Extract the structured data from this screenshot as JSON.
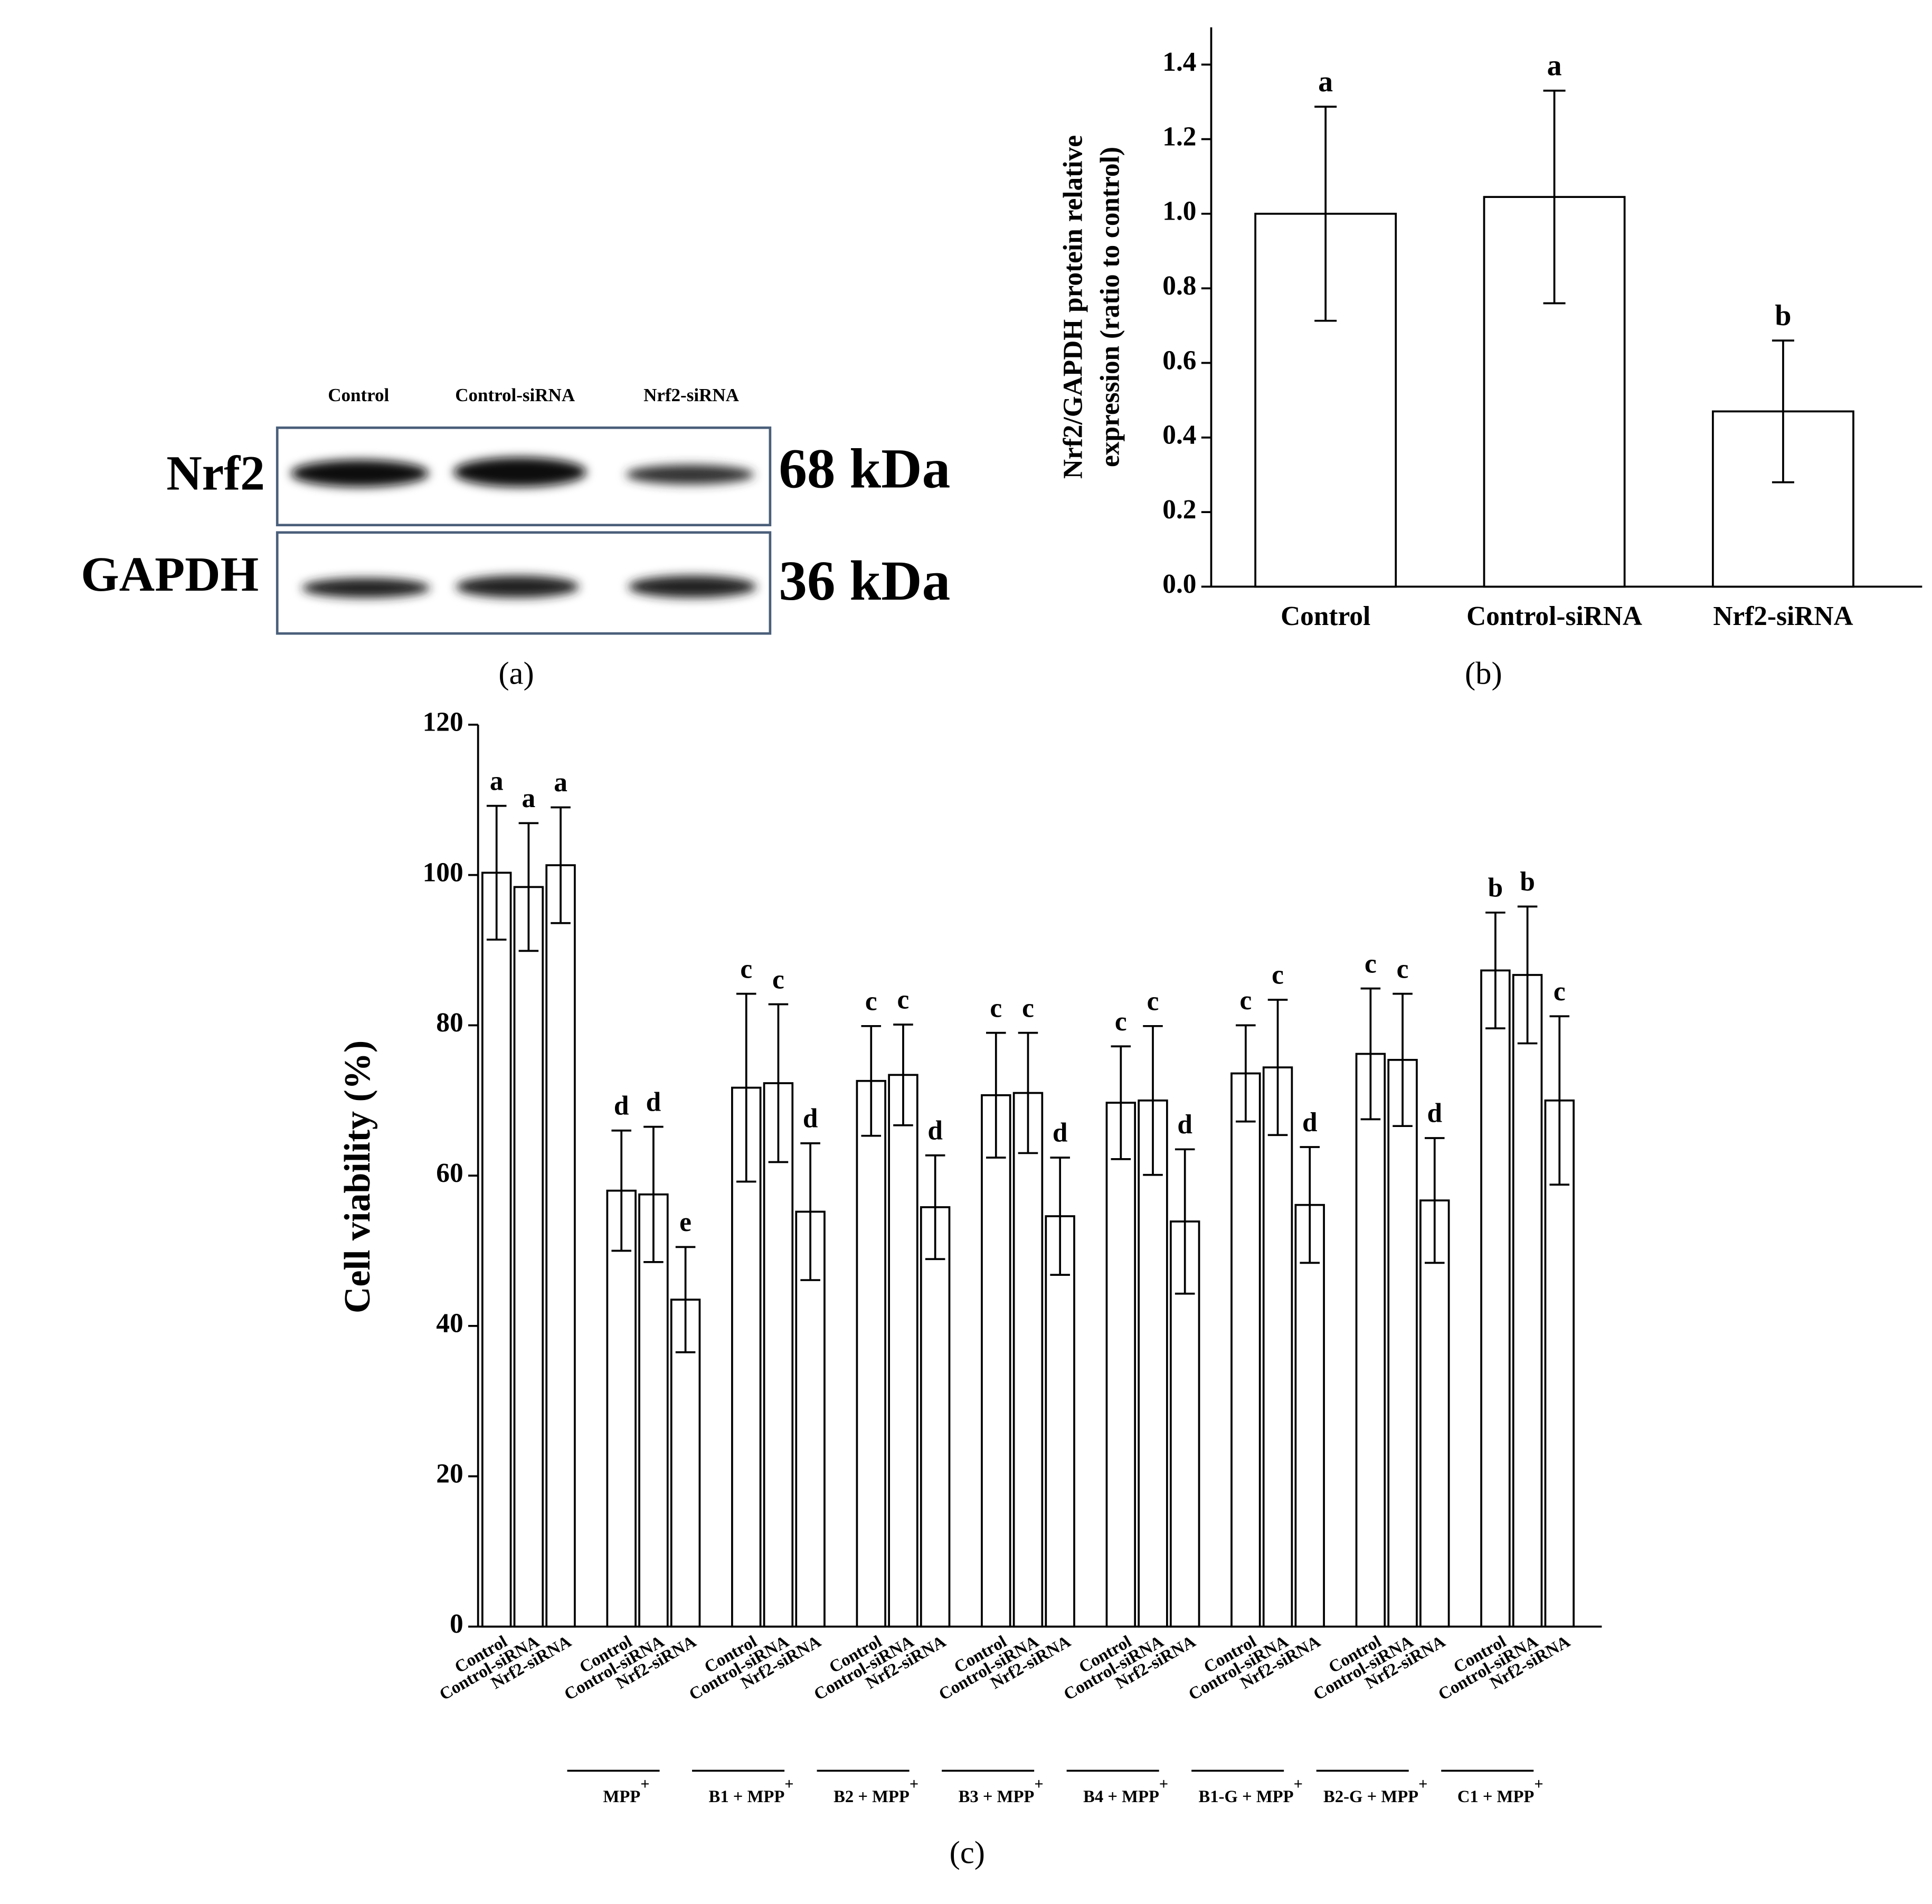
{
  "blot": {
    "lanes": [
      "Control",
      "Control-siRNA",
      "Nrf2-siRNA"
    ],
    "rows": [
      {
        "label": "Nrf2",
        "size": "68 kDa"
      },
      {
        "label": "GAPDH",
        "size": "36 kDa"
      }
    ],
    "caption": "(a)"
  },
  "chart_data": [
    {
      "type": "bar",
      "caption": "(b)",
      "ylabel": [
        "Nrf2/GAPDH protein relative",
        "expression (ratio to control)"
      ],
      "categories": [
        "Control",
        "Control-siRNA",
        "Nrf2-siRNA"
      ],
      "values": [
        1.0,
        1.045,
        0.47
      ],
      "errors": [
        0.287,
        0.285,
        0.19
      ],
      "letters": [
        "a",
        "a",
        "b"
      ],
      "color": "#ffffff",
      "ylim": [
        0,
        1.5
      ],
      "yticks": [
        {
          "value": 0,
          "label": "0.0"
        },
        0.2,
        0.4,
        0.6,
        0.8,
        {
          "value": 1,
          "label": "1.0"
        },
        1.2,
        1.4
      ]
    },
    {
      "type": "grouped-bar",
      "caption": "(c)",
      "ylabel": "Cell viability (%)",
      "color": "#ffffff",
      "ylim": [
        0,
        120
      ],
      "yticks": [
        0,
        20,
        40,
        60,
        80,
        100,
        120
      ],
      "groups": [
        {
          "label": null,
          "categories": [
            "Control",
            "Control-siRNA",
            "Nrf2-siRNA"
          ],
          "values": [
            100.3,
            98.4,
            101.3
          ],
          "errors": [
            8.9,
            8.5,
            7.7
          ],
          "letters": [
            "a",
            "a",
            "a"
          ]
        },
        {
          "label": [
            "MPP",
            "+"
          ],
          "categories": [
            "Control",
            "Control-siRNA",
            "Nrf2-siRNA"
          ],
          "values": [
            58.0,
            57.5,
            43.5
          ],
          "errors": [
            8.0,
            9.0,
            7.0
          ],
          "letters": [
            "d",
            "d",
            "e"
          ]
        },
        {
          "label": [
            "B1 + MPP",
            "+"
          ],
          "categories": [
            "Control",
            "Control-siRNA",
            "Nrf2-siRNA"
          ],
          "values": [
            71.7,
            72.3,
            55.2
          ],
          "errors": [
            12.5,
            10.5,
            9.1
          ],
          "letters": [
            "c",
            "c",
            "d"
          ]
        },
        {
          "label": [
            "B2 + MPP",
            "+"
          ],
          "categories": [
            "Control",
            "Control-siRNA",
            "Nrf2-siRNA"
          ],
          "values": [
            72.6,
            73.4,
            55.8
          ],
          "errors": [
            7.3,
            6.7,
            6.9
          ],
          "letters": [
            "c",
            "c",
            "d"
          ]
        },
        {
          "label": [
            "B3 + MPP",
            "+"
          ],
          "categories": [
            "Control",
            "Control-siRNA",
            "Nrf2-siRNA"
          ],
          "values": [
            70.7,
            71.0,
            54.6
          ],
          "errors": [
            8.3,
            8.0,
            7.8
          ],
          "letters": [
            "c",
            "c",
            "d"
          ]
        },
        {
          "label": [
            "B4 + MPP",
            "+"
          ],
          "categories": [
            "Control",
            "Control-siRNA",
            "Nrf2-siRNA"
          ],
          "values": [
            69.7,
            70.0,
            53.9
          ],
          "errors": [
            7.5,
            9.9,
            9.6
          ],
          "letters": [
            "c",
            "c",
            "d"
          ]
        },
        {
          "label": [
            "B1-G + MPP",
            "+"
          ],
          "categories": [
            "Control",
            "Control-siRNA",
            "Nrf2-siRNA"
          ],
          "values": [
            73.6,
            74.4,
            56.1
          ],
          "errors": [
            6.4,
            9.0,
            7.7
          ],
          "letters": [
            "c",
            "c",
            "d"
          ]
        },
        {
          "label": [
            "B2-G + MPP",
            "+"
          ],
          "categories": [
            "Control",
            "Control-siRNA",
            "Nrf2-siRNA"
          ],
          "values": [
            76.2,
            75.4,
            56.7
          ],
          "errors": [
            8.7,
            8.8,
            8.3
          ],
          "letters": [
            "c",
            "c",
            "d"
          ]
        },
        {
          "label": [
            "C1 + MPP",
            "+"
          ],
          "categories": [
            "Control",
            "Control-siRNA",
            "Nrf2-siRNA"
          ],
          "values": [
            87.3,
            86.7,
            70.0
          ],
          "errors": [
            7.7,
            9.1,
            11.2
          ],
          "letters": [
            "b",
            "b",
            "c"
          ]
        }
      ]
    }
  ]
}
